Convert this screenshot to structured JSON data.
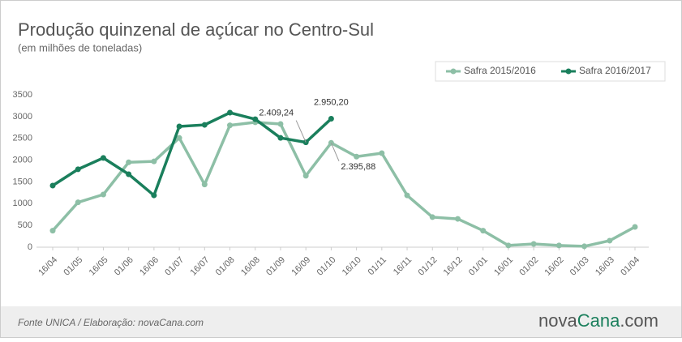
{
  "chart_data": {
    "type": "line",
    "title": "Produção quinzenal de açúcar no Centro-Sul",
    "subtitle": "(em milhões de toneladas)",
    "categories": [
      "16/04",
      "01/05",
      "16/05",
      "01/06",
      "16/06",
      "01/07",
      "16/07",
      "01/08",
      "16/08",
      "01/09",
      "16/09",
      "01/10",
      "16/10",
      "01/11",
      "16/11",
      "01/12",
      "16/12",
      "01/01",
      "16/01",
      "01/02",
      "16/02",
      "01/03",
      "16/03",
      "01/04"
    ],
    "series": [
      {
        "name": "Safra 2015/2016",
        "color": "#8dbfa6",
        "values": [
          380,
          1030,
          1210,
          1950,
          1970,
          2510,
          1440,
          2800,
          2870,
          2830,
          1640,
          2395.88,
          2080,
          2160,
          1190,
          690,
          650,
          380,
          40,
          75,
          40,
          20,
          150,
          465
        ],
        "value_labels": [
          null,
          null,
          null,
          null,
          null,
          null,
          null,
          null,
          null,
          null,
          null,
          "2.395,88",
          null,
          null,
          null,
          null,
          null,
          null,
          null,
          null,
          null,
          null,
          null,
          null
        ]
      },
      {
        "name": "Safra 2016/2017",
        "color": "#1a7f5c",
        "values": [
          1415,
          1790,
          2050,
          1675,
          1190,
          2775,
          2810,
          3090,
          2940,
          2510,
          2409.24,
          2950.2,
          null,
          null,
          null,
          null,
          null,
          null,
          null,
          null,
          null,
          null,
          null,
          null
        ],
        "value_labels": [
          null,
          null,
          null,
          null,
          null,
          null,
          null,
          null,
          null,
          null,
          "2.409,24",
          "2.950,20",
          null,
          null,
          null,
          null,
          null,
          null,
          null,
          null,
          null,
          null,
          null,
          null
        ]
      }
    ],
    "ylim": [
      0,
      3500
    ],
    "yticks": [
      0,
      500,
      1000,
      1500,
      2000,
      2500,
      3000,
      3500
    ],
    "grid": false,
    "source": "Fonte UNICA / Elaboração: novaCana.com",
    "logo": [
      "nova",
      "Cana",
      ".com"
    ]
  }
}
